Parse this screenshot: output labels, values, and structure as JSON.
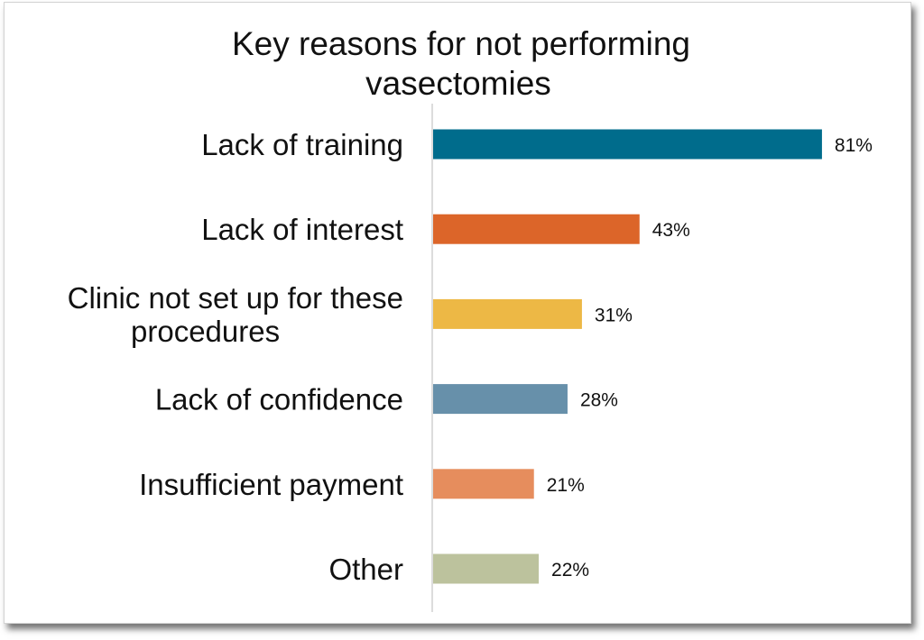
{
  "chart_data": {
    "type": "bar",
    "orientation": "horizontal",
    "title_lines": [
      "Key reasons for not performing",
      "vasectomies"
    ],
    "categories": [
      [
        "Lack of training"
      ],
      [
        "Lack of interest"
      ],
      [
        "Clinic not set up for these",
        "procedures"
      ],
      [
        "Lack of confidence"
      ],
      [
        "Insufficient payment"
      ],
      [
        "Other"
      ]
    ],
    "values": [
      81,
      43,
      31,
      28,
      21,
      22
    ],
    "value_labels": [
      "81%",
      "43%",
      "31%",
      "28%",
      "21%",
      "22%"
    ],
    "colors": [
      "#006C8C",
      "#DC6529",
      "#EDB845",
      "#6790AA",
      "#E68D5D",
      "#BCC29D"
    ],
    "xlim": [
      0,
      100
    ],
    "axis_color": "#d0d0d0",
    "grid": false,
    "legend": "none"
  }
}
